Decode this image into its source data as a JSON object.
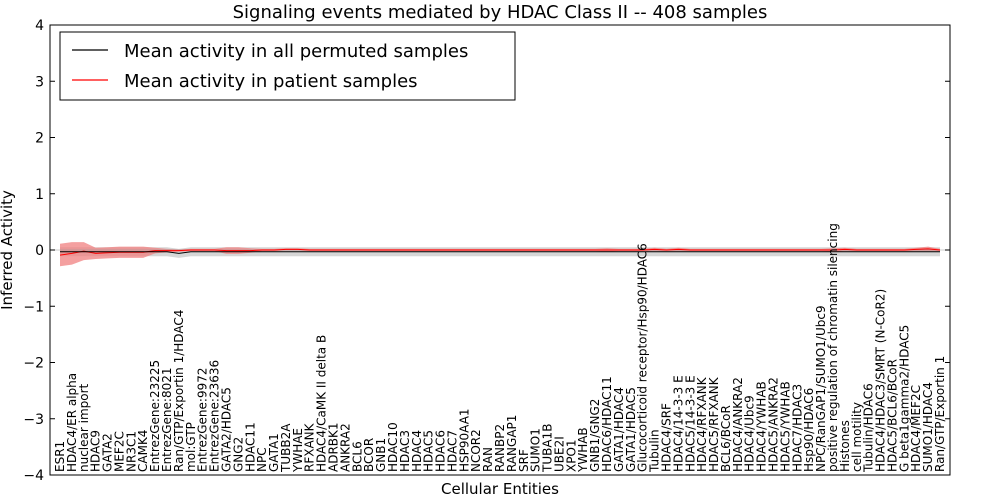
{
  "chart_data": {
    "type": "line",
    "title": "Signaling events mediated by HDAC Class II -- 408 samples",
    "xlabel": "Cellular Entities",
    "ylabel": "Inferred Activity",
    "ylim": [
      -4,
      4
    ],
    "yticks": [
      -4,
      -3,
      -2,
      -1,
      0,
      1,
      2,
      3,
      4
    ],
    "legend_position": "top-left",
    "colors": {
      "permuted": "#000000",
      "patient": "#ff0000",
      "patient_band": "#f08080",
      "permuted_band": "#bbbbbb"
    },
    "categories": [
      "ESR1",
      "HDAC4/ER alpha",
      "nuclear import",
      "HDAC9",
      "GATA2",
      "MEF2C",
      "NR3C1",
      "CAMK4",
      "EntrezGene:23225",
      "EntrezGene:8021",
      "Ran/GTP/Exportin 1/HDAC4",
      "mol:GTP",
      "EntrezGene:9972",
      "EntrezGene:23636",
      "GATA2/HDAC5",
      "GNG2",
      "HDAC11",
      "NPC",
      "GATA1",
      "TUBB2A",
      "YWHAE",
      "RFXANK",
      "HDAC4/CaMK II delta B",
      "ADRBK1",
      "ANKRA2",
      "BCL6",
      "BCOR",
      "GNB1",
      "HDAC10",
      "HDAC3",
      "HDAC4",
      "HDAC5",
      "HDAC6",
      "HDAC7",
      "HSP90AA1",
      "NCOR2",
      "RAN",
      "RANBP2",
      "RANGAP1",
      "SRF",
      "SUMO1",
      "TUBA1B",
      "UBE2I",
      "XPO1",
      "YWHAB",
      "GNB1/GNG2",
      "HDAC6/HDAC11",
      "GATA1/HDAC4",
      "GATA1/HDAC5",
      "Glucocorticoid receptor/Hsp90/HDAC6",
      "Tubulin",
      "HDAC4/SRF",
      "HDAC4/14-3-3 E",
      "HDAC5/14-3-3 E",
      "HDAC4/RFXANK",
      "HDAC5/RFXANK",
      "BCL6/BCoR",
      "HDAC4/ANKRA2",
      "HDAC4/Ubc9",
      "HDAC4/YWHAB",
      "HDAC5/ANKRA2",
      "HDAC5/YWHAB",
      "HDAC7/HDAC3",
      "Hsp90/HDAC6",
      "NPC/RanGAP1/SUMO1/Ubc9",
      "positive regulation of chromatin silencing",
      "Histones",
      "cell motility",
      "Tubulin/HDAC6",
      "HDAC4/HDAC3/SMRT (N-CoR2)",
      "HDAC5/BCL6/BCoR",
      "G beta1gamma2/HDAC5",
      "HDAC4/MEF2C",
      "SUMO1/HDAC4",
      "Ran/GTP/Exportin 1"
    ],
    "series": [
      {
        "name": "Mean activity in all permuted samples",
        "values": [
          -0.03,
          -0.03,
          -0.03,
          -0.03,
          -0.03,
          -0.03,
          -0.03,
          -0.03,
          -0.03,
          -0.03,
          -0.06,
          -0.03,
          -0.03,
          -0.03,
          -0.03,
          -0.03,
          -0.03,
          -0.03,
          -0.03,
          -0.03,
          -0.03,
          -0.03,
          -0.03,
          -0.03,
          -0.03,
          -0.03,
          -0.03,
          -0.03,
          -0.03,
          -0.03,
          -0.03,
          -0.03,
          -0.03,
          -0.03,
          -0.03,
          -0.03,
          -0.03,
          -0.03,
          -0.03,
          -0.03,
          -0.03,
          -0.03,
          -0.03,
          -0.03,
          -0.03,
          -0.03,
          -0.03,
          -0.03,
          -0.03,
          -0.03,
          -0.03,
          -0.03,
          -0.03,
          -0.03,
          -0.03,
          -0.03,
          -0.03,
          -0.03,
          -0.03,
          -0.03,
          -0.03,
          -0.03,
          -0.03,
          -0.03,
          -0.03,
          -0.03,
          -0.03,
          -0.03,
          -0.03,
          -0.03,
          -0.03,
          -0.03,
          -0.03,
          -0.03,
          -0.03
        ],
        "band": [
          0.08,
          0.08,
          0.08,
          0.08,
          0.08,
          0.08,
          0.08,
          0.08,
          0.08,
          0.08,
          0.08,
          0.08,
          0.08,
          0.08,
          0.08,
          0.08,
          0.08,
          0.08,
          0.08,
          0.08,
          0.08,
          0.08,
          0.08,
          0.08,
          0.08,
          0.08,
          0.08,
          0.08,
          0.08,
          0.08,
          0.08,
          0.08,
          0.08,
          0.08,
          0.08,
          0.08,
          0.08,
          0.08,
          0.08,
          0.08,
          0.08,
          0.08,
          0.08,
          0.08,
          0.08,
          0.08,
          0.08,
          0.08,
          0.08,
          0.08,
          0.08,
          0.08,
          0.08,
          0.08,
          0.08,
          0.08,
          0.08,
          0.08,
          0.08,
          0.08,
          0.08,
          0.08,
          0.08,
          0.08,
          0.08,
          0.08,
          0.08,
          0.08,
          0.08,
          0.08,
          0.08,
          0.08,
          0.08,
          0.08,
          0.08
        ]
      },
      {
        "name": "Mean activity in patient samples",
        "values": [
          -0.09,
          -0.06,
          -0.02,
          -0.06,
          -0.05,
          -0.04,
          -0.04,
          -0.04,
          -0.01,
          -0.01,
          -0.01,
          0.0,
          0.0,
          0.0,
          -0.01,
          -0.01,
          -0.01,
          0.0,
          0.0,
          0.01,
          0.01,
          0.0,
          0.0,
          0.0,
          0.0,
          0.0,
          0.0,
          0.0,
          0.0,
          0.0,
          0.0,
          0.0,
          0.0,
          0.0,
          0.0,
          0.0,
          0.0,
          0.0,
          0.0,
          0.0,
          0.0,
          0.0,
          0.0,
          0.0,
          0.0,
          0.0,
          0.0,
          0.0,
          0.0,
          0.0,
          0.01,
          0.0,
          0.01,
          0.0,
          0.0,
          0.0,
          0.0,
          0.0,
          0.0,
          0.0,
          0.0,
          0.0,
          0.0,
          0.0,
          0.0,
          0.0,
          0.01,
          0.0,
          0.0,
          0.0,
          0.0,
          0.0,
          0.01,
          0.02,
          0.0
        ],
        "band": [
          0.2,
          0.2,
          0.16,
          0.1,
          0.1,
          0.1,
          0.1,
          0.1,
          0.05,
          0.03,
          0.02,
          0.02,
          0.02,
          0.02,
          0.06,
          0.06,
          0.04,
          0.02,
          0.02,
          0.02,
          0.02,
          0.02,
          0.02,
          0.02,
          0.02,
          0.02,
          0.02,
          0.02,
          0.02,
          0.02,
          0.02,
          0.02,
          0.02,
          0.02,
          0.02,
          0.02,
          0.02,
          0.02,
          0.02,
          0.02,
          0.02,
          0.02,
          0.02,
          0.02,
          0.02,
          0.02,
          0.03,
          0.02,
          0.02,
          0.02,
          0.03,
          0.02,
          0.03,
          0.02,
          0.02,
          0.02,
          0.02,
          0.02,
          0.02,
          0.02,
          0.02,
          0.02,
          0.02,
          0.02,
          0.02,
          0.03,
          0.03,
          0.02,
          0.02,
          0.02,
          0.02,
          0.02,
          0.03,
          0.04,
          0.02
        ]
      }
    ]
  }
}
